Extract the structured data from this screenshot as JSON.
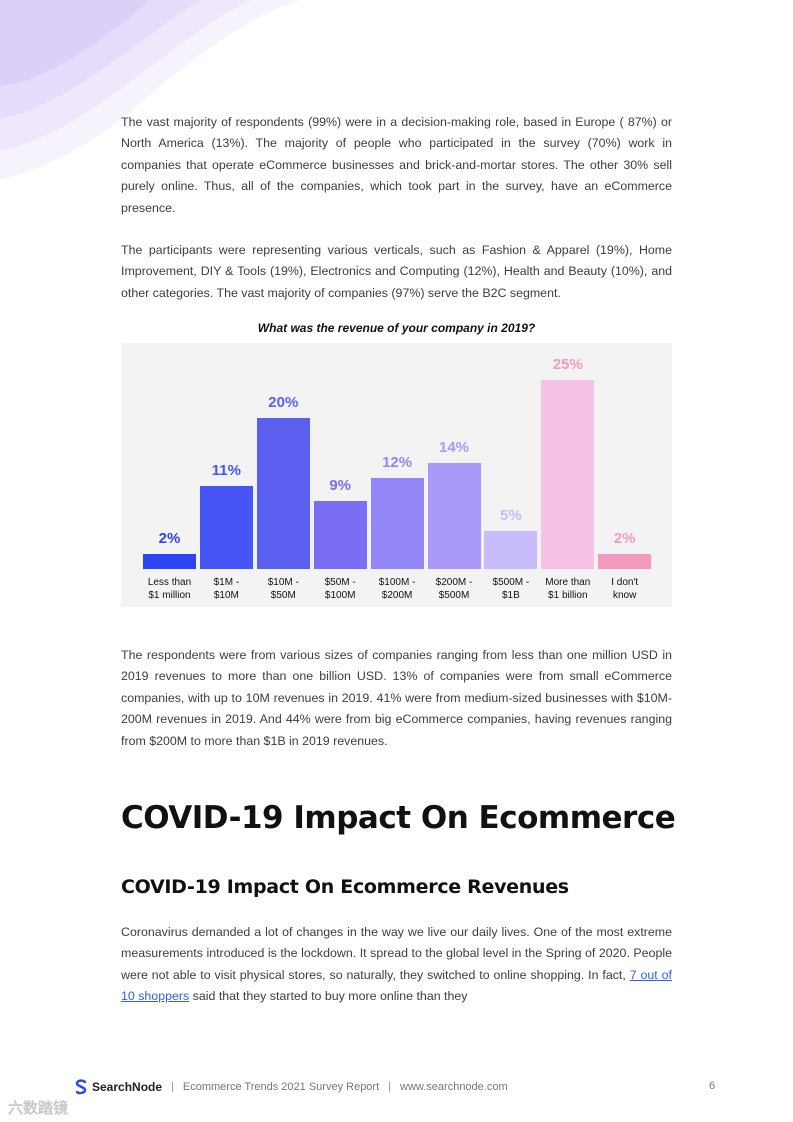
{
  "para1": "The vast majority of respondents (99%) were in a decision-making role, based in Europe ( 87%) or North America (13%). The majority of people who participated in the survey (70%) work in companies that operate eCommerce businesses and brick-and-mortar stores. The other 30% sell purely online. Thus, all of the companies, which took part in the survey, have an eCommerce presence.",
  "para2": "The participants were representing various verticals, such as Fashion & Apparel (19%), Home Improvement, DIY & Tools (19%), Electronics and Computing (12%), Health and Beauty (10%), and other categories. The vast majority of companies (97%) serve the B2C segment.",
  "chart_data": {
    "type": "bar",
    "title": "What was the revenue of your company in 2019?",
    "categories": [
      "Less than\n$1 million",
      "$1M -\n$10M",
      "$10M -\n$50M",
      "$50M -\n$100M",
      "$100M -\n$200M",
      "$200M -\n$500M",
      "$500M -\n$1B",
      "More than\n$1 billion",
      "I don't\nknow"
    ],
    "values": [
      2,
      11,
      20,
      9,
      12,
      14,
      5,
      25,
      2
    ],
    "value_labels": [
      "2%",
      "11%",
      "20%",
      "9%",
      "12%",
      "14%",
      "5%",
      "25%",
      "2%"
    ],
    "bar_colors": [
      "#2b45f5",
      "#4654f6",
      "#5b5ff0",
      "#7a6ef4",
      "#9386f7",
      "#ab99fa",
      "#c8bcfb",
      "#f6c3e7",
      "#f29ac0"
    ],
    "label_colors": [
      "#2b45f5",
      "#4654f6",
      "#5b5ff0",
      "#7a6ef4",
      "#9386f7",
      "#ab99fa",
      "#c8bcfb",
      "#f29ac0",
      "#f29ac0"
    ],
    "ylim": [
      0,
      25
    ]
  },
  "para3": "The respondents were from various sizes of companies ranging from less than one million USD in 2019 revenues to more than one billion USD. 13% of companies were from small eCommerce companies, with up to 10M revenues in 2019. 41% were from medium-sized businesses with $10M-200M revenues in 2019. And 44% were from big eCommerce companies, having revenues ranging from $200M to more than $1B in 2019 revenues.",
  "heading1": "COVID-19 Impact On Ecommerce",
  "heading2": "COVID-19 Impact On Ecommerce Revenues",
  "para4_before": "Coronavirus demanded a lot of changes in the way we live our daily lives. One of the most extreme measurements introduced is the lockdown. It spread to the global level in the Spring of 2020. People were not able to visit physical stores, so naturally, they switched to online shopping. In fact, ",
  "para4_link": "7 out of 10 shoppers",
  "para4_after": " said that they started to buy more online than they",
  "footer": {
    "brand": "SearchNode",
    "report": "Ecommerce Trends 2021 Survey Report",
    "website": "www.searchnode.com",
    "page": "6"
  },
  "watermark": "六数踏镜",
  "colors": {
    "accent": "#5b5ff0",
    "link": "#2f5fe0"
  }
}
